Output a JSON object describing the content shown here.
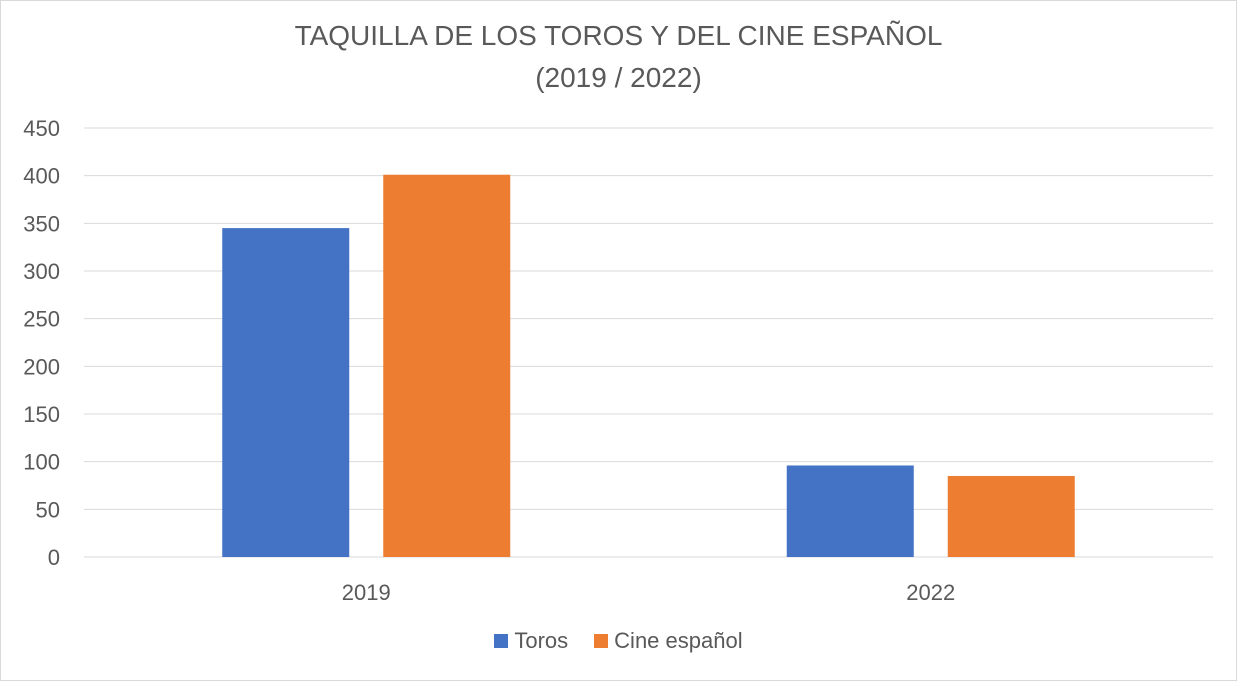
{
  "chart_data": {
    "type": "bar",
    "title": "TAQUILLA DE LOS TOROS Y DEL CINE ESPAÑOL",
    "subtitle": "(2019 / 2022)",
    "xlabel": "",
    "ylabel": "",
    "categories": [
      "2019",
      "2022"
    ],
    "series": [
      {
        "name": "Toros",
        "color": "#4472C4",
        "values": [
          345,
          96
        ]
      },
      {
        "name": "Cine español",
        "color": "#ED7D31",
        "values": [
          401,
          85
        ]
      }
    ],
    "ylim": [
      0,
      450
    ],
    "yticks": [
      0,
      50,
      100,
      150,
      200,
      250,
      300,
      350,
      400,
      450
    ],
    "grid": true,
    "legend_position": "bottom"
  }
}
